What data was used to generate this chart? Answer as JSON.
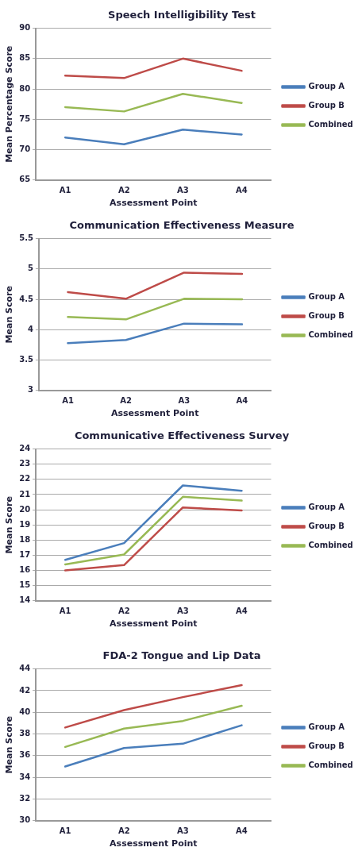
{
  "chart_data": [
    {
      "type": "line",
      "title": "Speech Intelligibility Test",
      "xlabel": "Assessment Point",
      "ylabel": "Mean Percentage Score",
      "categories": [
        "A1",
        "A2",
        "A3",
        "A4"
      ],
      "ylim": [
        65,
        90
      ],
      "yticks": [
        65,
        70,
        75,
        80,
        85,
        90
      ],
      "grid": "y",
      "legend": "right",
      "marker": "none",
      "line_style": "solid",
      "series": [
        {
          "name": "Group A",
          "color": "#4a7ebb",
          "values": [
            72.0,
            70.9,
            73.3,
            72.5
          ]
        },
        {
          "name": "Group B",
          "color": "#be4b48",
          "values": [
            82.2,
            81.8,
            85.0,
            83.0
          ]
        },
        {
          "name": "Combined",
          "color": "#98b954",
          "values": [
            77.0,
            76.3,
            79.2,
            77.7
          ]
        }
      ]
    },
    {
      "type": "line",
      "title": "Communication Effectiveness Measure",
      "xlabel": "Assessment Point",
      "ylabel": "Mean Score",
      "categories": [
        "A1",
        "A2",
        "A3",
        "A4"
      ],
      "ylim": [
        3,
        5.5
      ],
      "yticks": [
        3,
        3.5,
        4,
        4.5,
        5,
        5.5
      ],
      "grid": "y",
      "legend": "right",
      "marker": "none",
      "line_style": "solid",
      "series": [
        {
          "name": "Group A",
          "color": "#4a7ebb",
          "values": [
            3.78,
            3.83,
            4.1,
            4.09
          ]
        },
        {
          "name": "Group B",
          "color": "#be4b48",
          "values": [
            4.62,
            4.51,
            4.94,
            4.92
          ]
        },
        {
          "name": "Combined",
          "color": "#98b954",
          "values": [
            4.21,
            4.17,
            4.51,
            4.5
          ]
        }
      ]
    },
    {
      "type": "line",
      "title": "Communicative Effectiveness Survey",
      "xlabel": "Assessment Point",
      "ylabel": "Mean Score",
      "categories": [
        "A1",
        "A2",
        "A3",
        "A4"
      ],
      "ylim": [
        14,
        24
      ],
      "yticks": [
        14,
        15,
        16,
        17,
        18,
        19,
        20,
        21,
        22,
        23,
        24
      ],
      "grid": "y",
      "legend": "right",
      "marker": "none",
      "line_style": "solid",
      "series": [
        {
          "name": "Group A",
          "color": "#4a7ebb",
          "values": [
            16.7,
            17.8,
            21.6,
            21.25
          ]
        },
        {
          "name": "Group B",
          "color": "#be4b48",
          "values": [
            16.0,
            16.35,
            20.15,
            19.95
          ]
        },
        {
          "name": "Combined",
          "color": "#98b954",
          "values": [
            16.4,
            17.05,
            20.85,
            20.6
          ]
        }
      ]
    },
    {
      "type": "line",
      "title": "FDA-2 Tongue and Lip Data",
      "xlabel": "Assessment Point",
      "ylabel": "Mean Score",
      "categories": [
        "A1",
        "A2",
        "A3",
        "A4"
      ],
      "ylim": [
        30,
        44
      ],
      "yticks": [
        30,
        32,
        34,
        36,
        38,
        40,
        42,
        44
      ],
      "grid": "y",
      "legend": "right",
      "marker": "none",
      "line_style": "solid",
      "series": [
        {
          "name": "Group A",
          "color": "#4a7ebb",
          "values": [
            35.0,
            36.7,
            37.1,
            38.8
          ]
        },
        {
          "name": "Group B",
          "color": "#be4b48",
          "values": [
            38.6,
            40.2,
            41.4,
            42.5
          ]
        },
        {
          "name": "Combined",
          "color": "#98b954",
          "values": [
            36.8,
            38.5,
            39.2,
            40.6
          ]
        }
      ]
    }
  ]
}
